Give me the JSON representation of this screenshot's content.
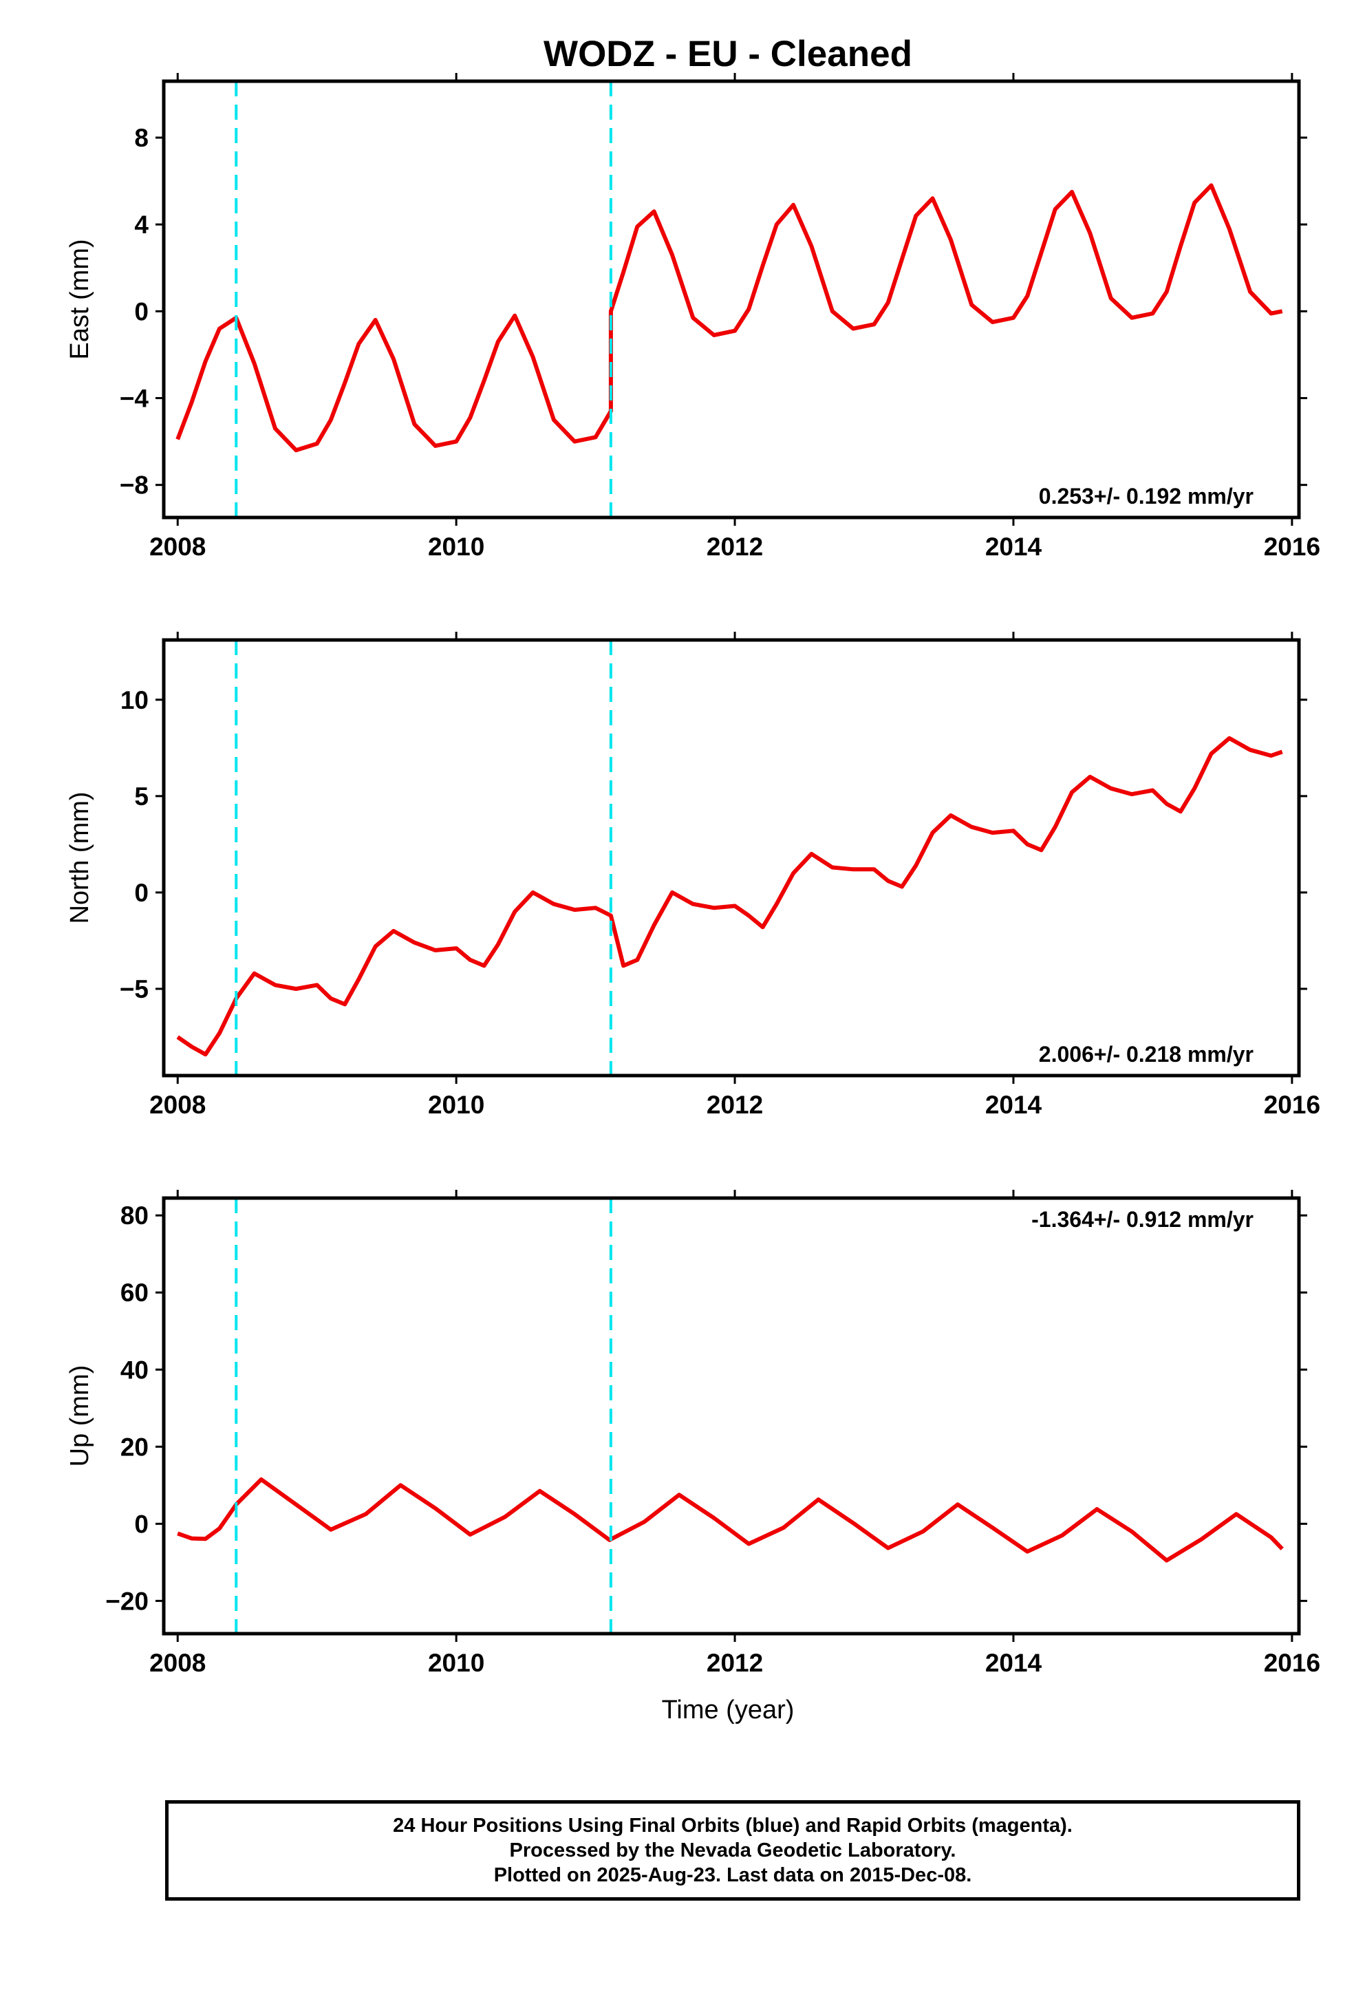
{
  "title": "WODZ  - EU - Cleaned",
  "colors": {
    "points": "#0000ee",
    "fit": "#ee0000",
    "breaks": "#00e5ee",
    "axis": "#000000"
  },
  "footer": {
    "line1": "24 Hour Positions Using Final Orbits (blue) and Rapid Orbits (magenta).",
    "line2": "Processed by the Nevada Geodetic Laboratory.",
    "line3": "Plotted on 2025-Aug-23. Last data on 2015-Dec-08."
  },
  "chart_data": [
    {
      "type": "scatter",
      "ylabel": "East (mm)",
      "xlabel": "",
      "xlim": [
        2007.9,
        2016.05
      ],
      "ylim": [
        -9.5,
        10.6
      ],
      "xticks": [
        2008,
        2010,
        2012,
        2014,
        2016
      ],
      "xtick_labels": [
        "2008",
        "2010",
        "2012",
        "2014",
        "2016"
      ],
      "yticks": [
        -8,
        -4,
        0,
        4,
        8
      ],
      "ytick_labels": [
        "−8",
        "−4",
        "0",
        "4",
        "8"
      ],
      "rate_label": "0.253+/- 0.192 mm/yr",
      "rate_label_position": "bottom-right",
      "breaks": [
        2008.42,
        2011.11
      ],
      "series": [
        {
          "kind": "fit-curve",
          "x": [
            2008.0,
            2008.1,
            2008.2,
            2008.3,
            2008.42,
            2008.55,
            2008.7,
            2008.85,
            2009.0,
            2009.1,
            2009.2,
            2009.3,
            2009.42,
            2009.55,
            2009.7,
            2009.85,
            2010.0,
            2010.1,
            2010.2,
            2010.3,
            2010.42,
            2010.55,
            2010.7,
            2010.85,
            2011.0,
            2011.11,
            2011.11,
            2011.2,
            2011.3,
            2011.42,
            2011.55,
            2011.7,
            2011.85,
            2012.0,
            2012.1,
            2012.2,
            2012.3,
            2012.42,
            2012.55,
            2012.7,
            2012.85,
            2013.0,
            2013.1,
            2013.2,
            2013.3,
            2013.42,
            2013.55,
            2013.7,
            2013.85,
            2014.0,
            2014.1,
            2014.2,
            2014.3,
            2014.42,
            2014.55,
            2014.7,
            2014.85,
            2015.0,
            2015.1,
            2015.2,
            2015.3,
            2015.42,
            2015.55,
            2015.7,
            2015.85,
            2015.93
          ],
          "y": [
            -5.9,
            -4.2,
            -2.3,
            -0.8,
            -0.3,
            -2.4,
            -5.4,
            -6.4,
            -6.1,
            -5.0,
            -3.3,
            -1.5,
            -0.4,
            -2.2,
            -5.2,
            -6.2,
            -6.0,
            -4.9,
            -3.2,
            -1.4,
            -0.2,
            -2.1,
            -5.0,
            -6.0,
            -5.8,
            -4.6,
            0.0,
            1.8,
            3.9,
            4.6,
            2.6,
            -0.3,
            -1.1,
            -0.9,
            0.1,
            2.1,
            4.0,
            4.9,
            3.0,
            0.0,
            -0.8,
            -0.6,
            0.4,
            2.4,
            4.4,
            5.2,
            3.3,
            0.3,
            -0.5,
            -0.3,
            0.7,
            2.7,
            4.7,
            5.5,
            3.6,
            0.6,
            -0.3,
            -0.1,
            0.9,
            3.0,
            5.0,
            5.8,
            3.8,
            0.9,
            -0.1,
            0.0
          ]
        }
      ]
    },
    {
      "type": "scatter",
      "ylabel": "North (mm)",
      "xlabel": "",
      "xlim": [
        2007.9,
        2016.05
      ],
      "ylim": [
        -9.5,
        13.1
      ],
      "xticks": [
        2008,
        2010,
        2012,
        2014,
        2016
      ],
      "xtick_labels": [
        "2008",
        "2010",
        "2012",
        "2014",
        "2016"
      ],
      "yticks": [
        -5,
        0,
        5,
        10
      ],
      "ytick_labels": [
        "−5",
        "0",
        "5",
        "10"
      ],
      "rate_label": "2.006+/- 0.218 mm/yr",
      "rate_label_position": "bottom-right",
      "breaks": [
        2008.42,
        2011.11
      ],
      "series": [
        {
          "kind": "fit-curve",
          "x": [
            2008.0,
            2008.1,
            2008.2,
            2008.3,
            2008.42,
            2008.55,
            2008.7,
            2008.85,
            2009.0,
            2009.1,
            2009.2,
            2009.3,
            2009.42,
            2009.55,
            2009.7,
            2009.85,
            2010.0,
            2010.1,
            2010.2,
            2010.3,
            2010.42,
            2010.55,
            2010.7,
            2010.85,
            2011.0,
            2011.11,
            2011.2,
            2011.3,
            2011.42,
            2011.55,
            2011.7,
            2011.85,
            2012.0,
            2012.1,
            2012.2,
            2012.3,
            2012.42,
            2012.55,
            2012.7,
            2012.85,
            2013.0,
            2013.1,
            2013.2,
            2013.3,
            2013.42,
            2013.55,
            2013.7,
            2013.85,
            2014.0,
            2014.1,
            2014.2,
            2014.3,
            2014.42,
            2014.55,
            2014.7,
            2014.85,
            2015.0,
            2015.1,
            2015.2,
            2015.3,
            2015.42,
            2015.55,
            2015.7,
            2015.85,
            2015.93
          ],
          "y": [
            -7.5,
            -8.0,
            -8.4,
            -7.3,
            -5.5,
            -4.2,
            -4.8,
            -5.0,
            -4.8,
            -5.5,
            -5.8,
            -4.5,
            -2.8,
            -2.0,
            -2.6,
            -3.0,
            -2.9,
            -3.5,
            -3.8,
            -2.7,
            -1.0,
            0.0,
            -0.6,
            -0.9,
            -0.8,
            -1.2,
            -3.8,
            -3.5,
            -1.7,
            0.0,
            -0.6,
            -0.8,
            -0.7,
            -1.2,
            -1.8,
            -0.6,
            1.0,
            2.0,
            1.3,
            1.2,
            1.2,
            0.6,
            0.3,
            1.4,
            3.1,
            4.0,
            3.4,
            3.1,
            3.2,
            2.5,
            2.2,
            3.4,
            5.2,
            6.0,
            5.4,
            5.1,
            5.3,
            4.6,
            4.2,
            5.4,
            7.2,
            8.0,
            7.4,
            7.1,
            7.3
          ]
        }
      ]
    },
    {
      "type": "scatter",
      "ylabel": "Up (mm)",
      "xlabel": "Time (year)",
      "xlim": [
        2007.9,
        2016.05
      ],
      "ylim": [
        -28.5,
        84.5
      ],
      "xticks": [
        2008,
        2010,
        2012,
        2014,
        2016
      ],
      "xtick_labels": [
        "2008",
        "2010",
        "2012",
        "2014",
        "2016"
      ],
      "yticks": [
        -20,
        0,
        20,
        40,
        60,
        80
      ],
      "ytick_labels": [
        "−20",
        "0",
        "20",
        "40",
        "60",
        "80"
      ],
      "rate_label": "-1.364+/- 0.912 mm/yr",
      "rate_label_position": "top-right",
      "breaks": [
        2008.42,
        2011.11
      ],
      "series": [
        {
          "kind": "fit-curve",
          "x": [
            2008.0,
            2008.1,
            2008.2,
            2008.3,
            2008.42,
            2008.6,
            2008.85,
            2009.1,
            2009.35,
            2009.6,
            2009.85,
            2010.1,
            2010.35,
            2010.6,
            2010.85,
            2011.1,
            2011.35,
            2011.6,
            2011.85,
            2012.1,
            2012.35,
            2012.6,
            2012.85,
            2013.1,
            2013.35,
            2013.6,
            2013.85,
            2014.1,
            2014.35,
            2014.6,
            2014.85,
            2015.1,
            2015.35,
            2015.6,
            2015.85,
            2015.93
          ],
          "y": [
            -2.5,
            -3.8,
            -3.9,
            -1.2,
            5.0,
            11.5,
            5.0,
            -1.5,
            2.5,
            10.0,
            4.0,
            -2.8,
            1.8,
            8.5,
            2.5,
            -4.2,
            0.5,
            7.5,
            1.5,
            -5.2,
            -1.0,
            6.3,
            0.2,
            -6.3,
            -2.0,
            5.0,
            -1.0,
            -7.2,
            -3.0,
            3.8,
            -2.0,
            -9.5,
            -4.0,
            2.5,
            -3.5,
            -6.5
          ]
        }
      ]
    }
  ]
}
